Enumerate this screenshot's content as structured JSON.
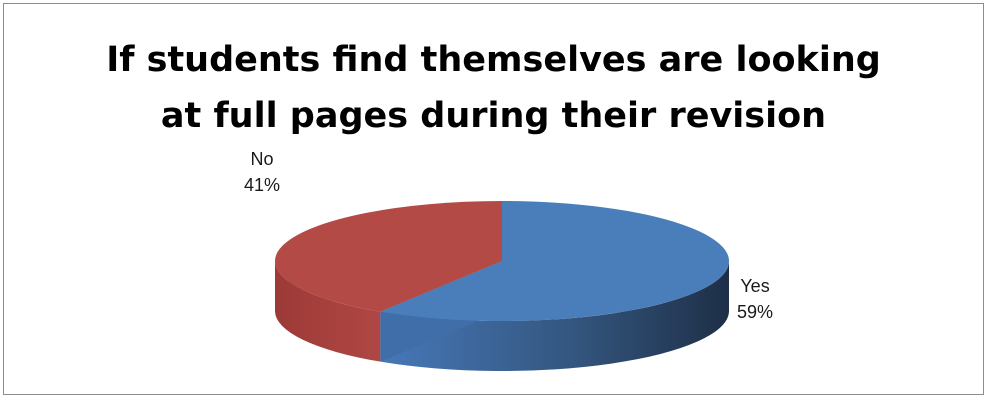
{
  "chart_data": {
    "type": "pie",
    "title_lines": [
      "If students find themselves are looking",
      "at full pages during their revision"
    ],
    "categories": [
      "Yes",
      "No"
    ],
    "values": [
      59,
      41
    ],
    "labels": [
      "59%",
      "41%"
    ],
    "colors": [
      "#4a7ebb",
      "#b34a46"
    ],
    "style": "3d",
    "legend": "none"
  }
}
